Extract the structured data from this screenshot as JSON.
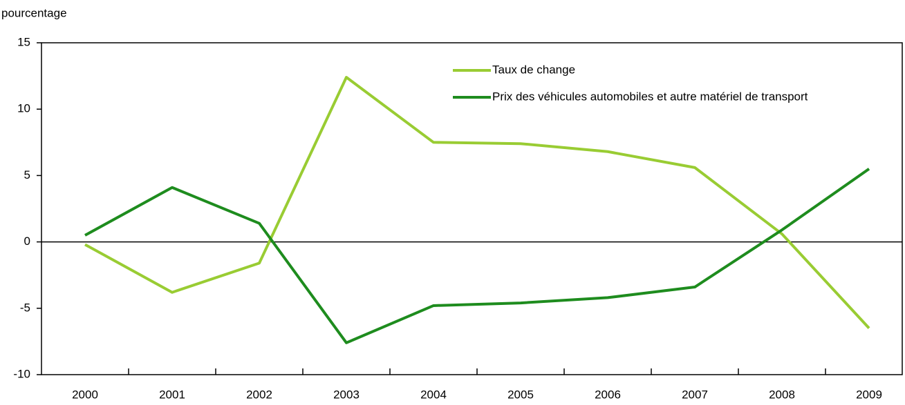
{
  "chart_data": {
    "type": "line",
    "y_axis_label": "pourcentage",
    "categories": [
      "2000",
      "2001",
      "2002",
      "2003",
      "2004",
      "2005",
      "2006",
      "2007",
      "2008",
      "2009"
    ],
    "series": [
      {
        "name": "Taux de change",
        "color": "#99cc33",
        "values": [
          -0.2,
          -3.8,
          -1.6,
          12.4,
          7.5,
          7.4,
          6.8,
          5.6,
          0.6,
          -6.5
        ]
      },
      {
        "name": "Prix des véhicules automobiles et autre matériel de transport",
        "color": "#1e8c1e",
        "values": [
          0.5,
          4.1,
          1.4,
          -7.6,
          -4.8,
          -4.6,
          -4.2,
          -3.4,
          0.9,
          5.5
        ]
      }
    ],
    "ylim": [
      -10,
      15
    ],
    "yticks": [
      -10,
      -5,
      0,
      5,
      10,
      15
    ],
    "grid": false,
    "legend": "top-right"
  }
}
